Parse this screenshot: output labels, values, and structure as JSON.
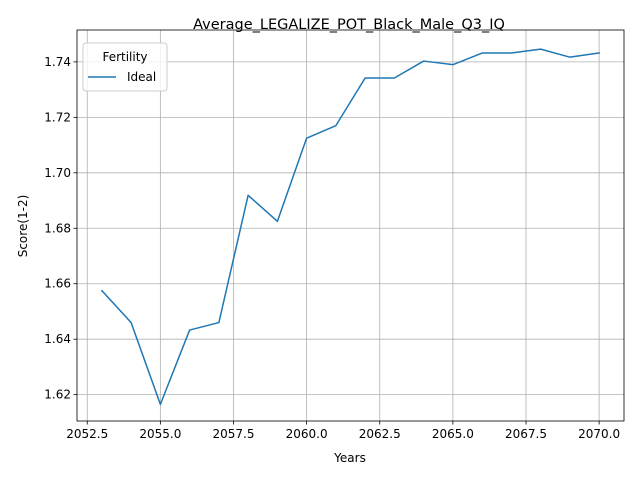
{
  "chart_data": {
    "type": "line",
    "title": "Average_LEGALIZE_POT_Black_Male_Q3_IQ",
    "xlabel": "Years",
    "ylabel": "Score(1-2)",
    "xlim": [
      2052.15,
      2070.85
    ],
    "ylim": [
      1.6105,
      1.7515
    ],
    "xticks": [
      2052.5,
      2055.0,
      2057.5,
      2060.0,
      2062.5,
      2065.0,
      2067.5,
      2070.0
    ],
    "xtick_labels": [
      "2052.5",
      "2055.0",
      "2057.5",
      "2060.0",
      "2062.5",
      "2065.0",
      "2067.5",
      "2070.0"
    ],
    "yticks": [
      1.62,
      1.64,
      1.66,
      1.68,
      1.7,
      1.72,
      1.74
    ],
    "ytick_labels": [
      "1.62",
      "1.64",
      "1.66",
      "1.68",
      "1.70",
      "1.72",
      "1.74"
    ],
    "grid": true,
    "legend": {
      "title": "Fertility",
      "placement": "top-left"
    },
    "series": [
      {
        "name": "Ideal",
        "color": "#1f77b4",
        "x": [
          2053,
          2054,
          2055,
          2056,
          2057,
          2058,
          2059,
          2060,
          2061,
          2062,
          2063,
          2064,
          2065,
          2066,
          2067,
          2068,
          2069,
          2070
        ],
        "y": [
          1.6575,
          1.646,
          1.6165,
          1.6433,
          1.646,
          1.6919,
          1.6825,
          1.7125,
          1.717,
          1.7342,
          1.7342,
          1.7403,
          1.739,
          1.7432,
          1.7432,
          1.7446,
          1.7417,
          1.7432
        ]
      }
    ]
  }
}
